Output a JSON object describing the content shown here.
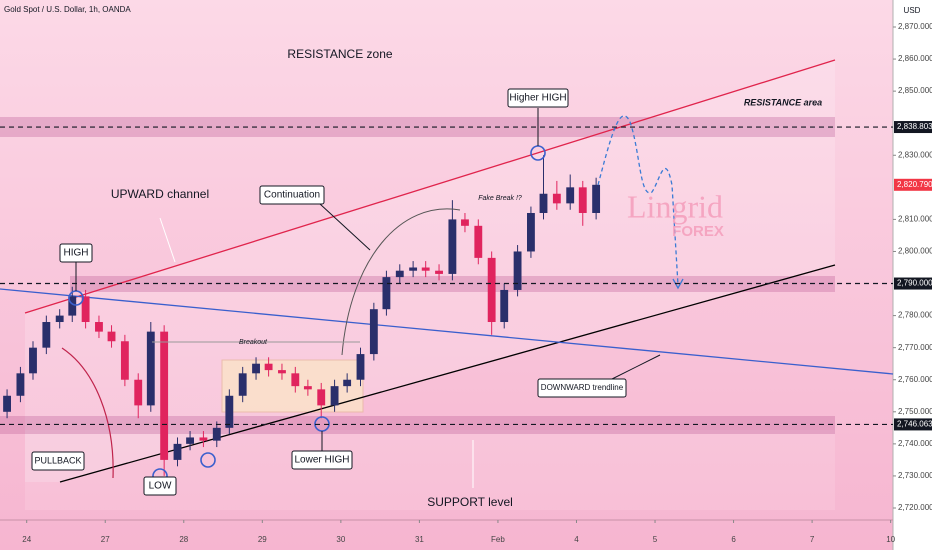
{
  "chart_data": {
    "type": "candlestick",
    "title": "Gold Spot / U.S. Dollar, 1h, OANDA",
    "y_unit": "USD",
    "up_color": "#2a2f6b",
    "down_color": "#e0245e",
    "grid": false,
    "xlim": [
      -0.34,
      11.03
    ],
    "ylim": [
      2720,
      2870
    ],
    "xticks": [
      {
        "value": 0,
        "label": "24"
      },
      {
        "value": 1,
        "label": "27"
      },
      {
        "value": 2,
        "label": "28"
      },
      {
        "value": 3,
        "label": "29"
      },
      {
        "value": 4,
        "label": "30"
      },
      {
        "value": 5,
        "label": "31"
      },
      {
        "value": 6,
        "label": "Feb"
      },
      {
        "value": 7,
        "label": "4"
      },
      {
        "value": 8,
        "label": "5"
      },
      {
        "value": 9,
        "label": "6"
      },
      {
        "value": 10,
        "label": "7"
      },
      {
        "value": 11,
        "label": "10"
      }
    ],
    "yticks": [
      {
        "value": 2870,
        "label": "2,870.000"
      },
      {
        "value": 2860,
        "label": "2,860.000"
      },
      {
        "value": 2850,
        "label": "2,850.000"
      },
      {
        "value": 2830,
        "label": "2,830.000"
      },
      {
        "value": 2810,
        "label": "2,810.000"
      },
      {
        "value": 2800,
        "label": "2,800.000"
      },
      {
        "value": 2780,
        "label": "2,780.000"
      },
      {
        "value": 2770,
        "label": "2,770.000"
      },
      {
        "value": 2760,
        "label": "2,760.000"
      },
      {
        "value": 2750,
        "label": "2,750.000"
      },
      {
        "value": 2740,
        "label": "2,740.000"
      },
      {
        "value": 2730,
        "label": "2,730.000"
      },
      {
        "value": 2720,
        "label": "2,720.000"
      }
    ],
    "levels": [
      {
        "value": 2838.803,
        "label": "2,838.803",
        "color": "#131722",
        "dashed": true
      },
      {
        "value": 2820.79,
        "label": "2,820.790",
        "color": "#f23645",
        "dashed": false
      },
      {
        "value": 2790,
        "label": "2,790.000",
        "color": "#131722",
        "dashed": true
      },
      {
        "value": 2746.063,
        "label": "2,746.063",
        "color": "#131722",
        "dashed": true
      }
    ],
    "x": [
      -0.25,
      -0.08,
      0.08,
      0.25,
      0.42,
      0.58,
      0.75,
      0.92,
      1.08,
      1.25,
      1.42,
      1.58,
      1.75,
      1.92,
      2.08,
      2.25,
      2.42,
      2.58,
      2.75,
      2.92,
      3.08,
      3.25,
      3.42,
      3.58,
      3.75,
      3.92,
      4.08,
      4.25,
      4.42,
      4.58,
      4.75,
      4.92,
      5.08,
      5.25,
      5.42,
      5.58,
      5.75,
      5.92,
      6.08,
      6.25,
      6.42,
      6.58,
      6.75,
      6.92,
      7.08,
      7.25
    ],
    "open": [
      2750,
      2755,
      2762,
      2770,
      2778,
      2780,
      2786,
      2778,
      2775,
      2772,
      2760,
      2752,
      2775,
      2735,
      2740,
      2742,
      2741,
      2745,
      2755,
      2762,
      2765,
      2763,
      2762,
      2758,
      2757,
      2752,
      2758,
      2760,
      2768,
      2782,
      2792,
      2794,
      2795,
      2794,
      2793,
      2810,
      2808,
      2798,
      2778,
      2788,
      2800,
      2812,
      2818,
      2815,
      2820,
      2812
    ],
    "high": [
      2757,
      2764,
      2772,
      2780,
      2782,
      2789,
      2788,
      2780,
      2777,
      2774,
      2762,
      2778,
      2777,
      2742,
      2744,
      2744,
      2747,
      2757,
      2764,
      2767,
      2767,
      2765,
      2764,
      2760,
      2759,
      2760,
      2762,
      2770,
      2784,
      2794,
      2796,
      2797,
      2797,
      2796,
      2816,
      2812,
      2810,
      2800,
      2790,
      2802,
      2814,
      2830,
      2822,
      2824,
      2822,
      2823
    ],
    "low": [
      2748,
      2753,
      2760,
      2768,
      2776,
      2778,
      2776,
      2773,
      2770,
      2758,
      2748,
      2750,
      2730,
      2733,
      2738,
      2739,
      2739,
      2743,
      2753,
      2760,
      2761,
      2760,
      2756,
      2755,
      2748,
      2750,
      2756,
      2758,
      2766,
      2780,
      2790,
      2792,
      2792,
      2791,
      2791,
      2806,
      2796,
      2774,
      2776,
      2786,
      2798,
      2810,
      2813,
      2813,
      2808,
      2810
    ],
    "close": [
      2755,
      2762,
      2770,
      2778,
      2780,
      2786,
      2778,
      2775,
      2772,
      2760,
      2752,
      2775,
      2735,
      2740,
      2742,
      2741,
      2745,
      2755,
      2762,
      2765,
      2763,
      2762,
      2758,
      2757,
      2752,
      2758,
      2760,
      2768,
      2782,
      2792,
      2794,
      2795,
      2794,
      2793,
      2810,
      2808,
      2798,
      2778,
      2788,
      2800,
      2812,
      2818,
      2815,
      2820,
      2812,
      2820.79
    ],
    "annotations": [
      "RESISTANCE zone",
      "RESISTANCE area",
      "Higher HIGH",
      "UPWARD channel",
      "Continuation",
      "Fake Break !?",
      "HIGH",
      "Breakout",
      "PULLBACK",
      "Lower HIGH",
      "LOW",
      "DOWNWARD trendline",
      "SUPPORT level"
    ],
    "watermark": [
      "Lingrid",
      "FOREX"
    ]
  }
}
